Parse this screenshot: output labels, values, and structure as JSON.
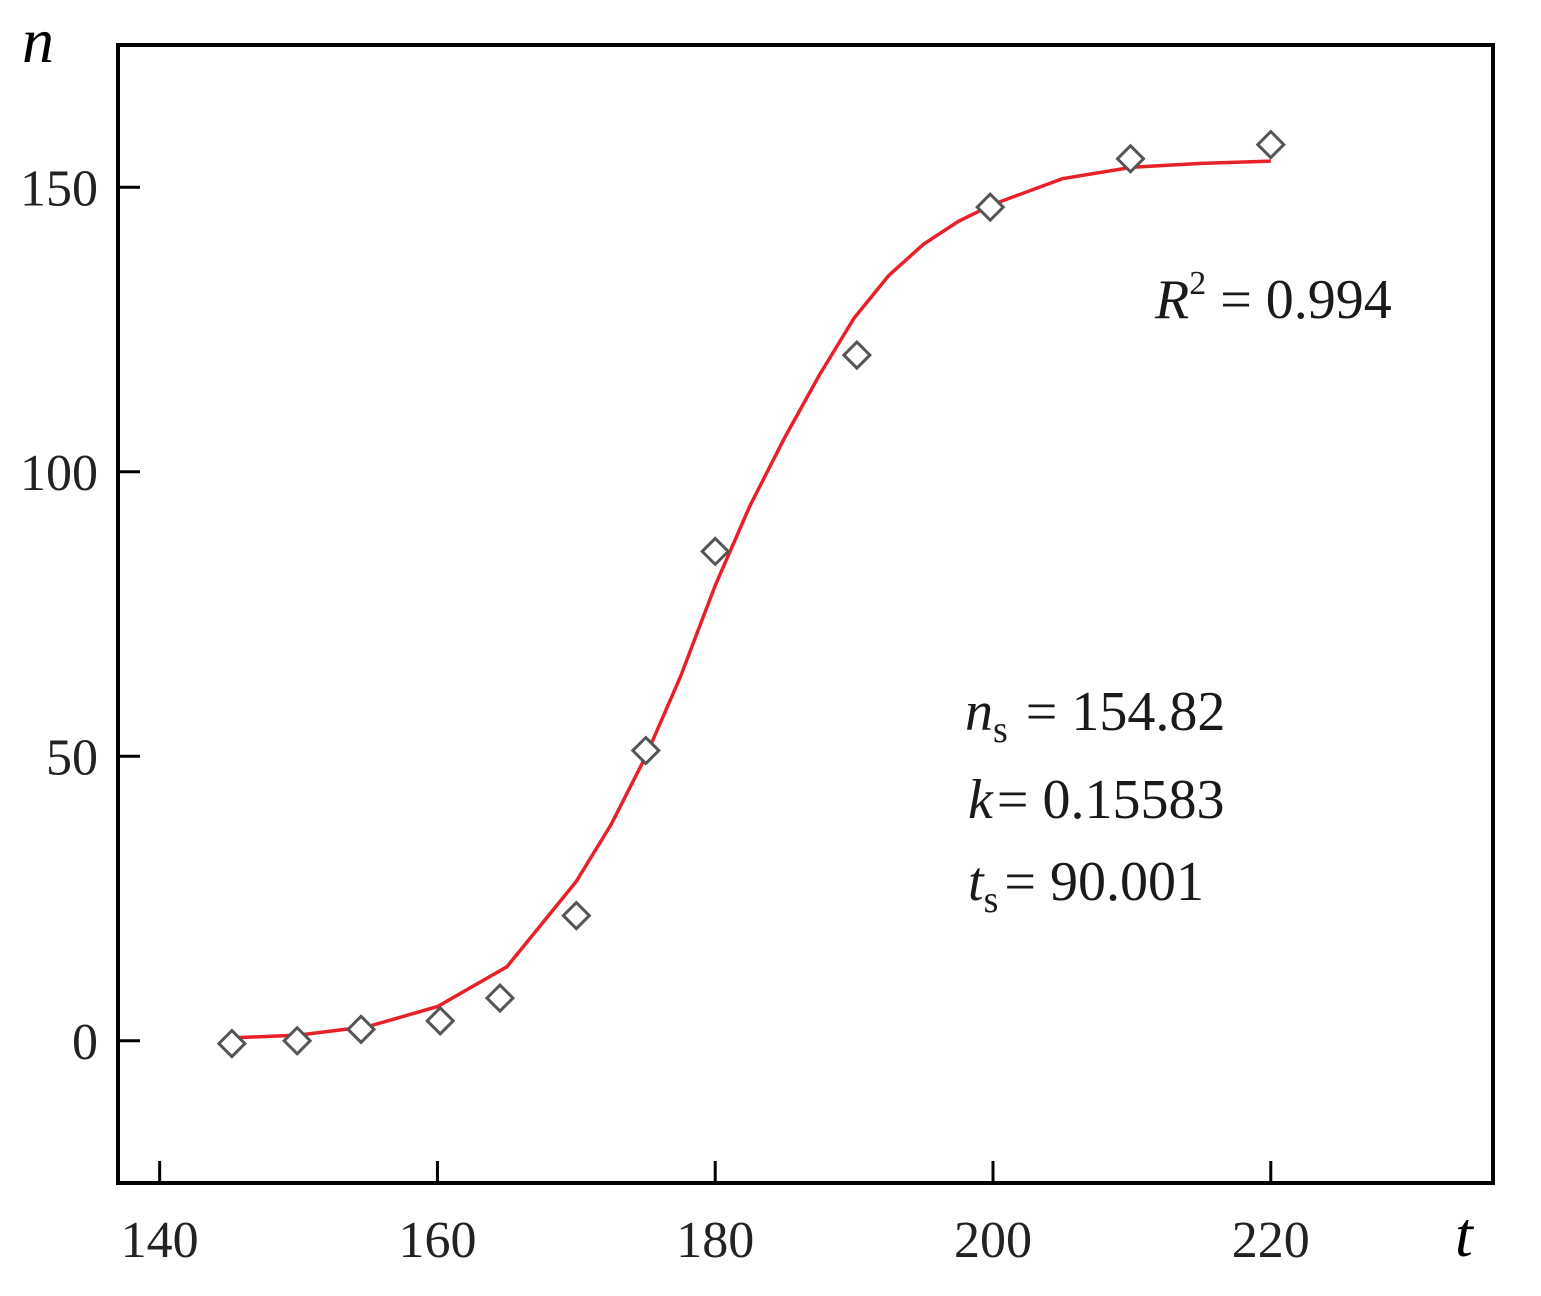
{
  "chart_data": {
    "type": "scatter",
    "title": "",
    "xlabel": "t",
    "ylabel": "n",
    "xlim": [
      137,
      236
    ],
    "ylim": [
      -25,
      175
    ],
    "x_ticks": [
      140,
      160,
      180,
      200,
      220
    ],
    "y_ticks": [
      0,
      50,
      100,
      150
    ],
    "grid": false,
    "series": [
      {
        "kind": "markers",
        "marker": "diamond",
        "color": "#555555",
        "points": [
          {
            "x": 145.2,
            "y": -0.5
          },
          {
            "x": 149.9,
            "y": 0.0
          },
          {
            "x": 154.5,
            "y": 2.0
          },
          {
            "x": 160.2,
            "y": 3.5
          },
          {
            "x": 164.5,
            "y": 7.5
          },
          {
            "x": 170.0,
            "y": 22.0
          },
          {
            "x": 175.0,
            "y": 51.0
          },
          {
            "x": 180.0,
            "y": 86.0
          },
          {
            "x": 190.2,
            "y": 120.5
          },
          {
            "x": 199.8,
            "y": 146.5
          },
          {
            "x": 209.9,
            "y": 155.0
          },
          {
            "x": 220.0,
            "y": 157.5
          }
        ]
      },
      {
        "kind": "line",
        "color": "#e8202a",
        "points": [
          {
            "x": 145.2,
            "y": 0.5
          },
          {
            "x": 150.0,
            "y": 1.0
          },
          {
            "x": 155.0,
            "y": 2.5
          },
          {
            "x": 160.0,
            "y": 6.0
          },
          {
            "x": 165.0,
            "y": 13.0
          },
          {
            "x": 170.0,
            "y": 28.0
          },
          {
            "x": 172.5,
            "y": 38.0
          },
          {
            "x": 175.0,
            "y": 50.0
          },
          {
            "x": 177.5,
            "y": 64.0
          },
          {
            "x": 180.0,
            "y": 80.0
          },
          {
            "x": 182.5,
            "y": 94.0
          },
          {
            "x": 185.0,
            "y": 106.0
          },
          {
            "x": 187.5,
            "y": 117.0
          },
          {
            "x": 190.0,
            "y": 127.0
          },
          {
            "x": 192.5,
            "y": 134.5
          },
          {
            "x": 195.0,
            "y": 140.0
          },
          {
            "x": 197.5,
            "y": 144.0
          },
          {
            "x": 200.0,
            "y": 147.0
          },
          {
            "x": 205.0,
            "y": 151.5
          },
          {
            "x": 210.0,
            "y": 153.5
          },
          {
            "x": 215.0,
            "y": 154.2
          },
          {
            "x": 220.0,
            "y": 154.6
          }
        ]
      }
    ],
    "annotations": {
      "r2": {
        "symbol": "R",
        "sup": "2",
        "value": "= 0.994"
      },
      "params": [
        {
          "symbol": "n",
          "sub": "s",
          "value": "= 154.82"
        },
        {
          "symbol": "k",
          "sub": "",
          "value": "= 0.15583"
        },
        {
          "symbol": "t",
          "sub": "s",
          "value": "= 90.001"
        }
      ]
    },
    "colors": {
      "fit_line": "#e8202a",
      "markers": "#555555",
      "axes": "#000000"
    }
  }
}
